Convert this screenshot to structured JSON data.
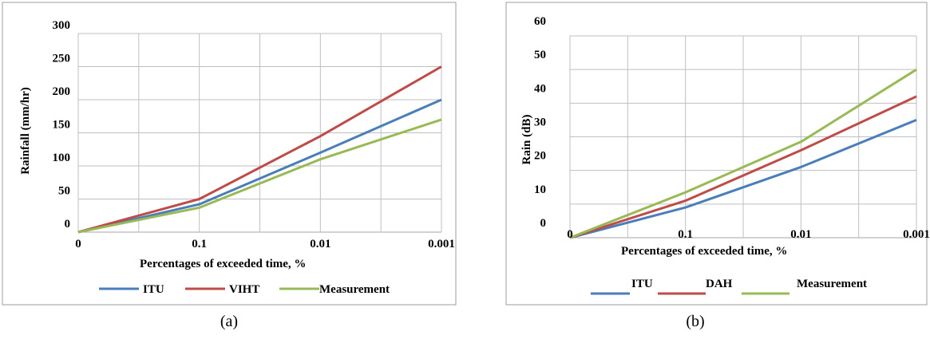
{
  "colors": {
    "itu": "#4a7ebb",
    "second": "#be4b48",
    "measurement": "#98b954",
    "grid": "#bfbfbf",
    "frame": "#9c9c9c"
  },
  "captions": {
    "a": "(a)",
    "b": "(b)"
  },
  "chart_data": [
    {
      "type": "line",
      "x": [
        "0",
        "0.1",
        "0.01",
        "0.001"
      ],
      "xlabel": "Percentages of exceeded time, %",
      "ylabel": "Rainfall (mm/hr)",
      "ylim": [
        0,
        300
      ],
      "yticks": [
        "0",
        "50",
        "100",
        "150",
        "200",
        "250",
        "300"
      ],
      "grid": true,
      "legend_position": "bottom",
      "series": [
        {
          "name": "ITU",
          "color": "#4a7ebb",
          "values": [
            0,
            42,
            120,
            200
          ]
        },
        {
          "name": "VIHT",
          "color": "#be4b48",
          "values": [
            0,
            50,
            145,
            250
          ]
        },
        {
          "name": "Measurement",
          "color": "#98b954",
          "values": [
            0,
            37,
            110,
            170
          ]
        }
      ]
    },
    {
      "type": "line",
      "x": [
        "0",
        "0.1",
        "0.01",
        "0.001"
      ],
      "xlabel": "Percentages of exceeded time, %",
      "ylabel": "Rain (dB)",
      "ylim": [
        0,
        60
      ],
      "yticks": [
        "0",
        "10",
        "20",
        "30",
        "40",
        "50",
        "60"
      ],
      "grid": true,
      "legend_position": "bottom",
      "series": [
        {
          "name": "ITU",
          "color": "#4a7ebb",
          "values": [
            0,
            9,
            21,
            35
          ]
        },
        {
          "name": "DAH",
          "color": "#be4b48",
          "values": [
            0,
            11,
            26,
            42
          ]
        },
        {
          "name": "Measurement",
          "color": "#98b954",
          "values": [
            0,
            13.5,
            28.5,
            50
          ]
        }
      ]
    }
  ]
}
